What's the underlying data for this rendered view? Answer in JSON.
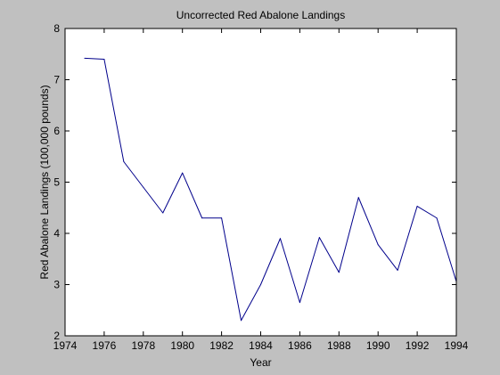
{
  "chart_data": {
    "type": "line",
    "title": "Uncorrected Red Abalone Landings",
    "xlabel": "Year",
    "ylabel": "Red Abalone Landings (100,000 pounds)",
    "xlim": [
      1974,
      1994
    ],
    "ylim": [
      2,
      8
    ],
    "xticks": [
      "1974",
      "1976",
      "1978",
      "1980",
      "1982",
      "1984",
      "1986",
      "1988",
      "1990",
      "1992",
      "1994"
    ],
    "yticks": [
      "2",
      "3",
      "4",
      "5",
      "6",
      "7",
      "8"
    ],
    "grid": false,
    "legend": "none",
    "background_color": "#c0c0c0",
    "plot_area_color": "#ffffff",
    "series": [
      {
        "color": "#00008b",
        "x": [
          1975,
          1976,
          1977,
          1978,
          1979,
          1980,
          1981,
          1982,
          1983,
          1984,
          1985,
          1986,
          1987,
          1988,
          1989,
          1990,
          1991,
          1992,
          1993,
          1994
        ],
        "y": [
          7.42,
          7.4,
          5.4,
          4.9,
          4.4,
          5.18,
          4.3,
          4.3,
          2.3,
          3.0,
          3.9,
          2.65,
          3.92,
          3.24,
          4.7,
          3.78,
          3.28,
          4.53,
          4.3,
          3.06
        ]
      }
    ]
  }
}
